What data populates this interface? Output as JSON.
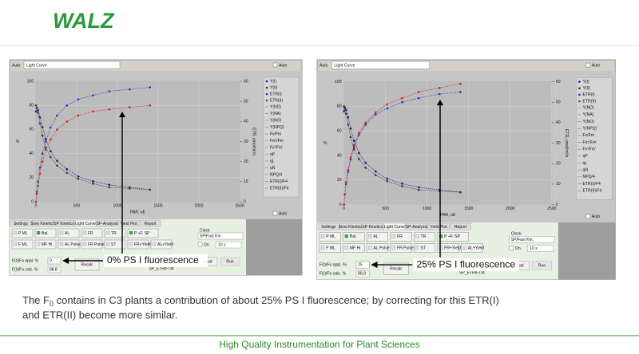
{
  "header": {
    "logo": "WALZ"
  },
  "screens": [
    {
      "top": {
        "mode": "Auto",
        "view": "Light Curve",
        "auto": "Auto"
      },
      "chart": {
        "ylabel": "%",
        "y2label": "ETR, umol/m²/s",
        "xlabel": "PAR, uE",
        "xlim": [
          0,
          2500
        ],
        "xticks": [
          0,
          500,
          1000,
          1500,
          2000,
          2500
        ],
        "ylim": [
          0,
          100
        ],
        "yticks": [
          0,
          20,
          40,
          60,
          80,
          100
        ],
        "y2lim": [
          0,
          60
        ],
        "y2ticks": [
          0,
          10,
          20,
          30,
          40,
          50,
          60
        ],
        "x": [
          0,
          10,
          25,
          50,
          80,
          120,
          180,
          260,
          380,
          520,
          700,
          900,
          1150,
          1400
        ],
        "series": [
          {
            "name": "Y(I)",
            "color": "#1a1a8c",
            "values": [
              75,
              78,
              76,
              70,
              62,
              52,
              42,
              34,
              27,
              21,
              17,
              14,
              12,
              10
            ]
          },
          {
            "name": "Y(II)",
            "color": "#3a3a3a",
            "values": [
              80,
              78,
              74,
              65,
              55,
              45,
              37,
              30,
              24,
              19,
              15,
              12,
              11,
              10
            ]
          },
          {
            "name": "ETR(I)",
            "color": "#2233cc",
            "axis": "y2",
            "values": [
              0,
              5,
              10,
              17,
              24,
              30,
              37,
              43,
              48,
              51,
              53,
              55,
              56,
              57
            ]
          },
          {
            "name": "ETR(II)",
            "color": "#cc2222",
            "axis": "y2",
            "values": [
              0,
              4,
              8,
              14,
              20,
              26,
              31,
              36,
              40,
              43,
              45,
              46,
              47,
              48
            ]
          }
        ],
        "legend": [
          "Y(ND)",
          "Y(NA)",
          "Y(NO)",
          "Y(NPQ)",
          "Fv/Fm",
          "Fm'/Fm",
          "Fv'/Fm'",
          "qP",
          "qL",
          "qN",
          "NPQ/4",
          "ETR(I)/F4",
          "ETR(II)/F4"
        ],
        "auto": "Auto"
      },
      "tabs": [
        "Settings",
        "Slow Kinetics",
        "SP Kinetics",
        "Light Curve",
        "SP-Analysis",
        "Yield Plot",
        "Report"
      ],
      "buttons": [
        [
          "P ML",
          "Bal.",
          "AL",
          "FR",
          "TR",
          "P +F. SP"
        ],
        [
          "F ML",
          "MF Hi",
          "AL Pulse",
          "FR Pulse",
          "ST",
          "FR+Yield",
          "AL+Yield"
        ]
      ],
      "clock": {
        "label": "Clock",
        "mode": "SP/Fast Kin.",
        "on": "On",
        "interval": "10 s",
        "load": "Load",
        "run": "Run"
      },
      "fi_appl": {
        "label": "F(I)/Fo appl. %",
        "value": "0"
      },
      "fi_calc": {
        "label": "F(I)/Fo calc. %",
        "value": "88.8"
      },
      "recalc": "Recalc",
      "file": "SP_ETR/FTM",
      "annotation": "0% PS I fluorescence"
    },
    {
      "top": {
        "mode": "Auto",
        "view": "Light Curve",
        "auto": "Auto"
      },
      "chart": {
        "ylabel": "%",
        "y2label": "ETR, umol/m²/s",
        "xlabel": "PAR, uE",
        "xlim": [
          0,
          2500
        ],
        "xticks": [
          0,
          500,
          1000,
          1500,
          2000,
          2500
        ],
        "ylim": [
          0,
          100
        ],
        "yticks": [
          0,
          20,
          40,
          60,
          80,
          100
        ],
        "y2lim": [
          0,
          60
        ],
        "y2ticks": [
          0,
          10,
          20,
          30,
          40,
          50,
          60
        ],
        "x": [
          0,
          10,
          25,
          50,
          80,
          120,
          180,
          260,
          380,
          520,
          700,
          900,
          1150,
          1400
        ],
        "series": [
          {
            "name": "Y(I)",
            "color": "#1a1a8c",
            "values": [
              76,
              79,
              77,
              71,
              62,
              52,
              42,
              34,
              27,
              21,
              17,
              14,
              12,
              10
            ]
          },
          {
            "name": "Y(II)",
            "color": "#3a3a3a",
            "values": [
              80,
              78,
              74,
              65,
              55,
              45,
              37,
              30,
              24,
              19,
              15,
              12,
              11,
              10
            ]
          },
          {
            "name": "ETR(I)",
            "color": "#2233cc",
            "axis": "y2",
            "values": [
              0,
              5,
              10,
              16,
              22,
              28,
              34,
              39,
              44,
              47,
              50,
              52,
              54,
              55
            ]
          },
          {
            "name": "ETR(II)",
            "color": "#cc2222",
            "axis": "y2",
            "values": [
              0,
              5,
              11,
              17,
              23,
              29,
              35,
              40,
              45,
              49,
              52,
              55,
              57,
              59
            ]
          }
        ],
        "legend": [
          "Y(ND)",
          "Y(NA)",
          "Y(NO)",
          "Y(NPQ)",
          "Fv/Fm",
          "Fm'/Fm",
          "Fv'/Fm'",
          "qP",
          "qL",
          "qN",
          "NPQ/4",
          "ETR(I)/F4",
          "ETR(II)/F4"
        ],
        "auto": "Auto"
      },
      "tabs": [
        "Settings",
        "Slow Kinetics",
        "SP Kinetics",
        "Light Curve",
        "SP-Analysis",
        "Yield Plot",
        "Report"
      ],
      "buttons": [
        [
          "P ML",
          "Bal.",
          "AL",
          "FR",
          "TR",
          "P +F. SP"
        ],
        [
          "F ML",
          "MF Hi",
          "AL Pulse",
          "FR Pulse",
          "ST",
          "FR+Yield",
          "AL+Yield"
        ]
      ],
      "clock": {
        "label": "Clock",
        "mode": "SP/Fast Kin.",
        "on": "On",
        "interval": "10 s",
        "load": "Load",
        "run": "Run"
      },
      "fi_appl": {
        "label": "F(I)/Fo appl. %",
        "value": "25"
      },
      "fi_calc": {
        "label": "F(I)/Fo calc. %",
        "value": "88.8"
      },
      "recalc": "Recalc",
      "file": "SP_ETR/FTM",
      "annotation": "25% PS I fluorescence"
    }
  ],
  "caption": {
    "pre": "The F",
    "sub": "0",
    "post": " contains in C3 plants a contribution of about 25% PS I fluorescence; by correcting for this ETR(I)",
    "line2": "and ETR(II) become more similar."
  },
  "footer": "High Quality Instrumentation for Plant Sciences"
}
